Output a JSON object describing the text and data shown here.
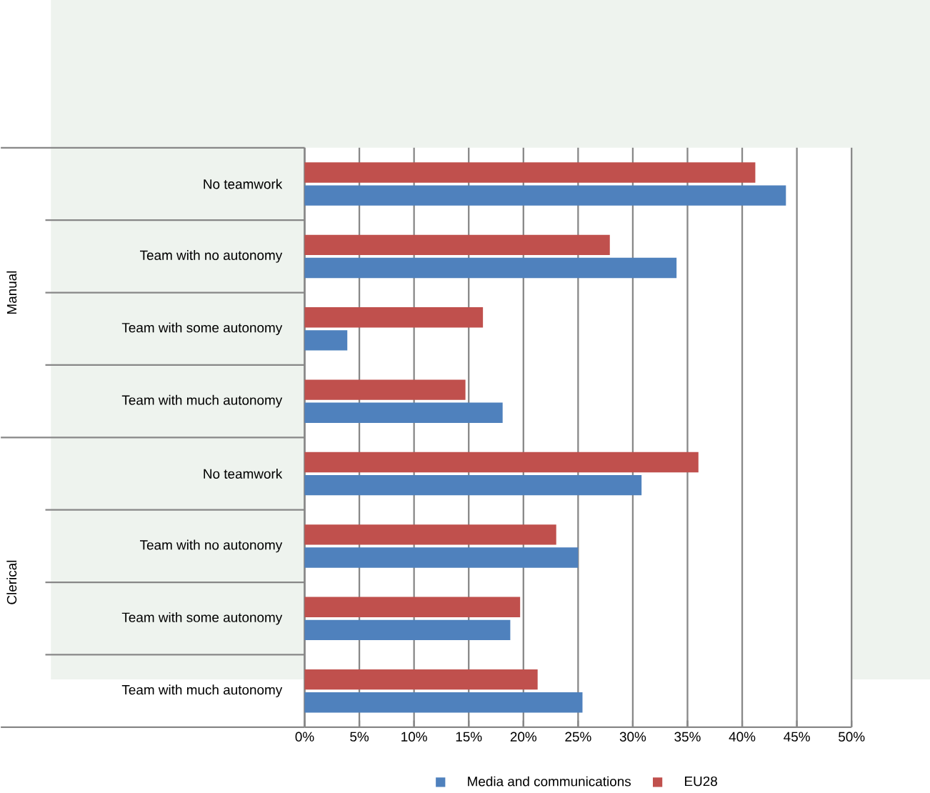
{
  "chart_data": {
    "type": "bar",
    "orientation": "horizontal",
    "categories": [
      "No teamwork",
      "Team with no autonomy",
      "Team with some autonomy",
      "Team with much autonomy",
      "No teamwork",
      "Team with no autonomy",
      "Team with some autonomy",
      "Team with much autonomy"
    ],
    "series": [
      {
        "name": "Media and communications",
        "color": "#4f81bd",
        "values": [
          44.0,
          34.0,
          3.9,
          18.1,
          30.8,
          25.0,
          18.8,
          25.4
        ]
      },
      {
        "name": "EU28",
        "color": "#c0504d",
        "values": [
          41.2,
          27.9,
          16.3,
          14.7,
          36.0,
          23.0,
          19.7,
          21.3
        ]
      }
    ],
    "annotations": [
      "Manual",
      "Clerical"
    ],
    "xlim": [
      0,
      50
    ],
    "xticks": [
      {
        "value": 0,
        "label": "0%"
      },
      {
        "value": 5,
        "label": "5%"
      },
      {
        "value": 10,
        "label": "10%"
      },
      {
        "value": 15,
        "label": "15%"
      },
      {
        "value": 20,
        "label": "20%"
      },
      {
        "value": 25,
        "label": "25%"
      },
      {
        "value": 30,
        "label": "30%"
      },
      {
        "value": 35,
        "label": "35%"
      },
      {
        "value": 40,
        "label": "40%"
      },
      {
        "value": 45,
        "label": "45%"
      },
      {
        "value": 50,
        "label": "50%"
      }
    ],
    "grid": "x",
    "legend": "bottom"
  }
}
